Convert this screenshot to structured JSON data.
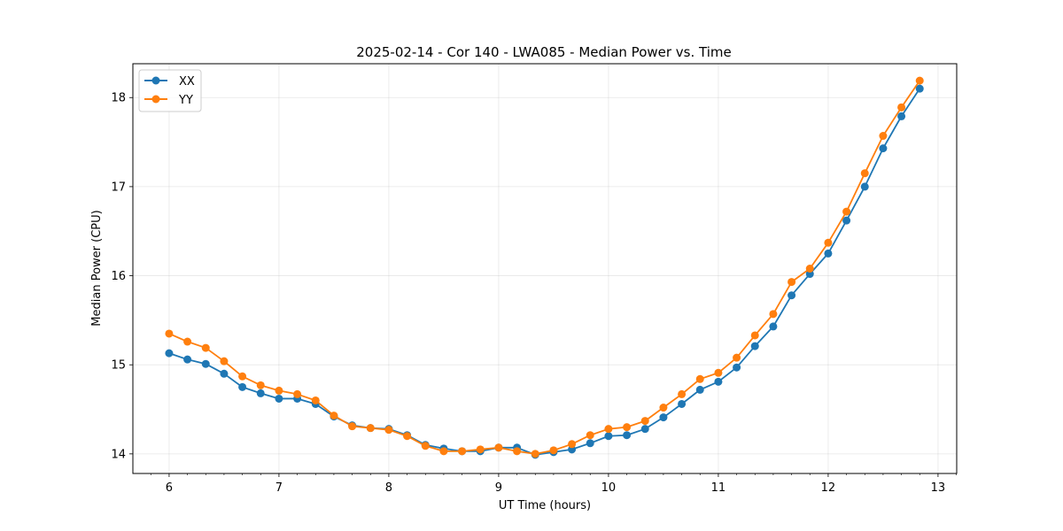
{
  "chart_data": {
    "type": "line",
    "title": "2025-02-14 - Cor 140 - LWA085 - Median Power vs. Time",
    "xlabel": "UT Time (hours)",
    "ylabel": "Median Power (CPU)",
    "xlim": [
      5.67,
      13.17
    ],
    "ylim": [
      13.78,
      18.38
    ],
    "xticks": [
      6,
      7,
      8,
      9,
      10,
      11,
      12,
      13
    ],
    "yticks": [
      14,
      15,
      16,
      17,
      18
    ],
    "grid": true,
    "legend_position": "top-left",
    "x": [
      6.0,
      6.1667,
      6.3333,
      6.5,
      6.6667,
      6.8333,
      7.0,
      7.1667,
      7.3333,
      7.5,
      7.6667,
      7.8333,
      8.0,
      8.1667,
      8.3333,
      8.5,
      8.6667,
      8.8333,
      9.0,
      9.1667,
      9.3333,
      9.5,
      9.6667,
      9.8333,
      10.0,
      10.1667,
      10.3333,
      10.5,
      10.6667,
      10.8333,
      11.0,
      11.1667,
      11.3333,
      11.5,
      11.6667,
      11.8333,
      12.0,
      12.1667,
      12.3333,
      12.5,
      12.6667,
      12.8333
    ],
    "series": [
      {
        "name": "XX",
        "color": "#1f77b4",
        "values": [
          15.13,
          15.06,
          15.01,
          14.9,
          14.75,
          14.68,
          14.62,
          14.62,
          14.56,
          14.42,
          14.32,
          14.29,
          14.28,
          14.21,
          14.1,
          14.06,
          14.03,
          14.03,
          14.07,
          14.07,
          13.99,
          14.02,
          14.05,
          14.12,
          14.2,
          14.21,
          14.28,
          14.41,
          14.56,
          14.72,
          14.81,
          14.97,
          15.21,
          15.43,
          15.78,
          16.02,
          16.25,
          16.62,
          17.0,
          17.43,
          17.79,
          18.1
        ]
      },
      {
        "name": "YY",
        "color": "#ff7f0e",
        "values": [
          15.35,
          15.26,
          15.19,
          15.04,
          14.87,
          14.77,
          14.71,
          14.67,
          14.6,
          14.43,
          14.31,
          14.29,
          14.27,
          14.2,
          14.09,
          14.03,
          14.03,
          14.05,
          14.07,
          14.03,
          14.0,
          14.04,
          14.11,
          14.21,
          14.28,
          14.3,
          14.37,
          14.52,
          14.67,
          14.84,
          14.91,
          15.08,
          15.33,
          15.57,
          15.93,
          16.08,
          16.37,
          16.72,
          17.15,
          17.57,
          17.89,
          18.19
        ]
      }
    ]
  }
}
